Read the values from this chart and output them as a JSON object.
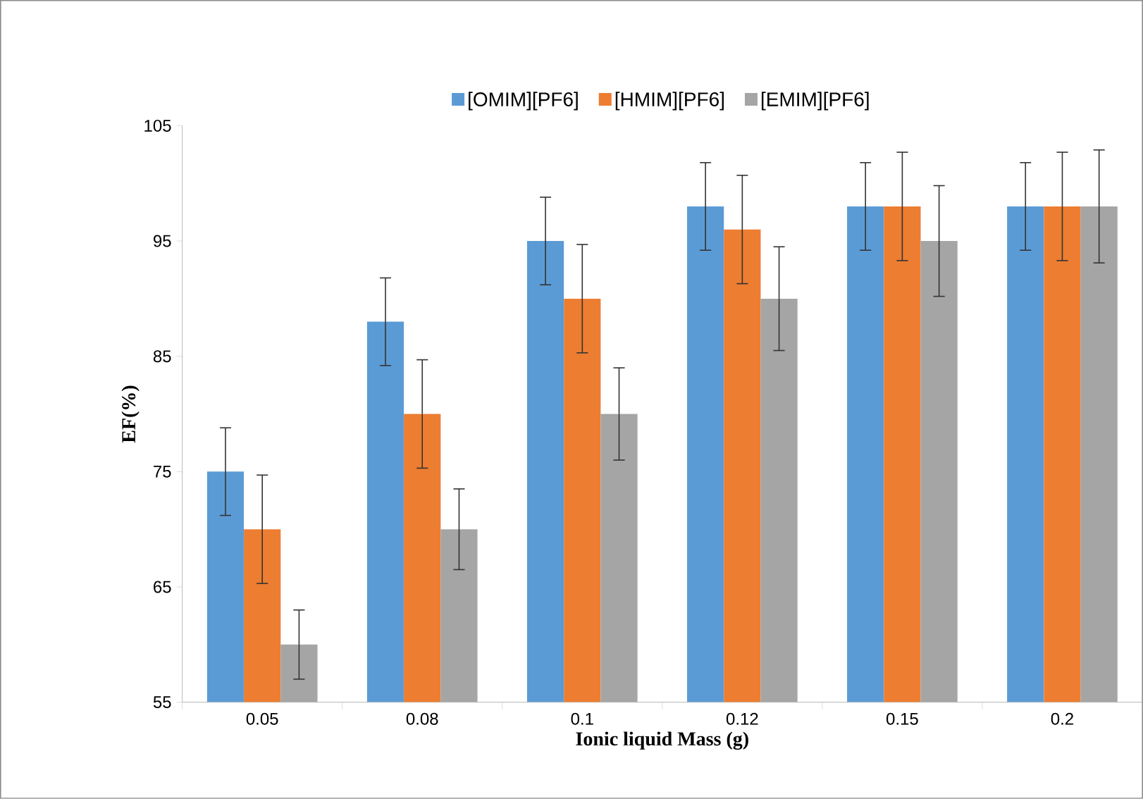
{
  "chart_data": {
    "type": "bar",
    "xlabel": "Ionic liquid Mass (g)",
    "ylabel": "EF(%)",
    "categories": [
      "0.05",
      "0.08",
      "0.1",
      "0.12",
      "0.15",
      "0.2"
    ],
    "series": [
      {
        "name": "[OMIM][PF6]",
        "color": "#5b9bd5",
        "values": [
          75,
          88,
          95,
          98,
          98,
          98
        ],
        "errors": [
          3.8,
          3.8,
          3.8,
          3.8,
          3.8,
          3.8
        ]
      },
      {
        "name": "[HMIM][PF6]",
        "color": "#ed7d31",
        "values": [
          70,
          80,
          90,
          96,
          98,
          98
        ],
        "errors": [
          4.7,
          4.7,
          4.7,
          4.7,
          4.7,
          4.7
        ]
      },
      {
        "name": "[EMIM][PF6]",
        "color": "#a5a5a5",
        "values": [
          60,
          70,
          80,
          90,
          95,
          98
        ],
        "errors": [
          3,
          3.5,
          4,
          4.5,
          4.8,
          4.9
        ]
      }
    ],
    "ylim": [
      55,
      105
    ],
    "yticks": [
      55,
      65,
      75,
      85,
      95,
      105
    ],
    "legend": "top"
  }
}
